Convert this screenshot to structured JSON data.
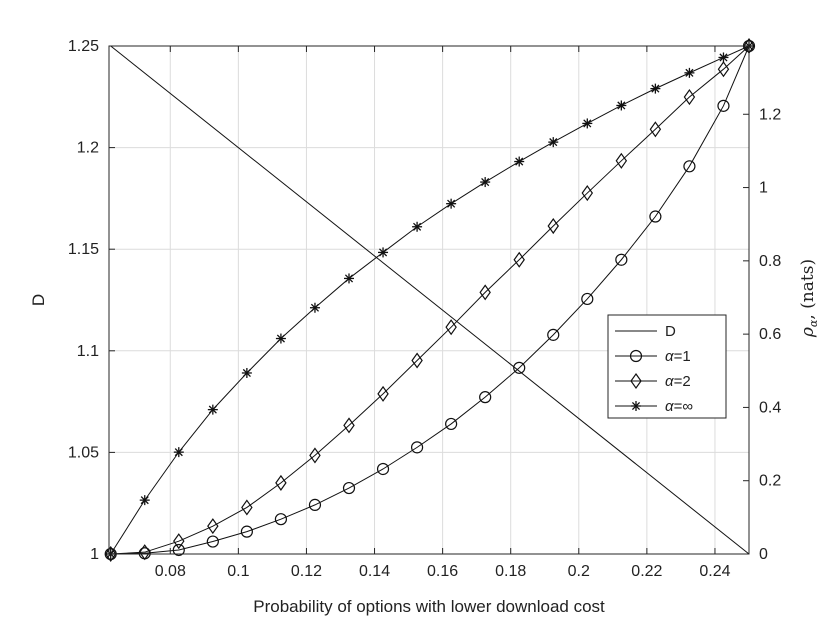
{
  "chart_data": {
    "type": "line",
    "xlabel": "Probability of options with lower download cost",
    "ylabel_left": "D",
    "ylabel_right_symbol": "ρ",
    "ylabel_right_subscript": "α",
    "ylabel_right_units": ", (nats)",
    "xlim": [
      0.062,
      0.25
    ],
    "ylim_left": [
      1.0,
      1.25
    ],
    "ylim_right": [
      0.0,
      1.3863
    ],
    "x_ticks": [
      0.08,
      0.1,
      0.12,
      0.14,
      0.16,
      0.18,
      0.2,
      0.22,
      0.24
    ],
    "x_tick_labels": [
      "0.08",
      "0.1",
      "0.12",
      "0.14",
      "0.16",
      "0.18",
      "0.2",
      "0.22",
      "0.24"
    ],
    "y_left_ticks": [
      1.0,
      1.05,
      1.1,
      1.15,
      1.2,
      1.25
    ],
    "y_left_tick_labels": [
      "1",
      "1.05",
      "1.1",
      "1.15",
      "1.2",
      "1.25"
    ],
    "y_right_ticks": [
      0,
      0.2,
      0.4,
      0.6,
      0.8,
      1.0,
      1.2
    ],
    "y_right_tick_labels": [
      "0",
      "0.2",
      "0.4",
      "0.6",
      "0.8",
      "1",
      "1.2"
    ],
    "grid": true,
    "legend_position": "right",
    "series": [
      {
        "name": "D",
        "axis": "left",
        "marker": "none",
        "x": [
          0.0625,
          0.25
        ],
        "y": [
          1.25,
          1.0
        ]
      },
      {
        "name_prefix": "α",
        "name_suffix": "=1",
        "axis": "right",
        "marker": "circle",
        "x": [
          0.0625,
          0.0725,
          0.0825,
          0.0925,
          0.1025,
          0.1125,
          0.1225,
          0.1325,
          0.1425,
          0.1525,
          0.1625,
          0.1725,
          0.1825,
          0.1925,
          0.2025,
          0.2125,
          0.2225,
          0.2325,
          0.2425,
          0.25
        ],
        "y": [
          0.0,
          0.002,
          0.011,
          0.034,
          0.061,
          0.095,
          0.134,
          0.18,
          0.232,
          0.291,
          0.355,
          0.428,
          0.508,
          0.598,
          0.696,
          0.803,
          0.921,
          1.058,
          1.223,
          1.3863
        ]
      },
      {
        "name_prefix": "α",
        "name_suffix": "=2",
        "axis": "right",
        "marker": "diamond",
        "x": [
          0.0625,
          0.0725,
          0.0825,
          0.0925,
          0.1025,
          0.1125,
          0.1225,
          0.1325,
          0.1425,
          0.1525,
          0.1625,
          0.1725,
          0.1825,
          0.1925,
          0.2025,
          0.2125,
          0.2225,
          0.2325,
          0.2425,
          0.25
        ],
        "y": [
          0.0,
          0.005,
          0.035,
          0.076,
          0.127,
          0.194,
          0.269,
          0.351,
          0.437,
          0.528,
          0.619,
          0.714,
          0.803,
          0.895,
          0.985,
          1.073,
          1.159,
          1.247,
          1.323,
          1.3863
        ]
      },
      {
        "name_prefix": "α",
        "name_suffix": "=∞",
        "axis": "right",
        "marker": "asterisk",
        "x": [
          0.0625,
          0.0725,
          0.0825,
          0.0925,
          0.1025,
          0.1125,
          0.1225,
          0.1325,
          0.1425,
          0.1525,
          0.1625,
          0.1725,
          0.1825,
          0.1925,
          0.2025,
          0.2125,
          0.2225,
          0.2325,
          0.2425,
          0.25
        ],
        "y": [
          0.0,
          0.147,
          0.278,
          0.394,
          0.494,
          0.588,
          0.672,
          0.752,
          0.823,
          0.893,
          0.956,
          1.015,
          1.071,
          1.124,
          1.175,
          1.224,
          1.27,
          1.313,
          1.355,
          1.3863
        ]
      }
    ]
  }
}
